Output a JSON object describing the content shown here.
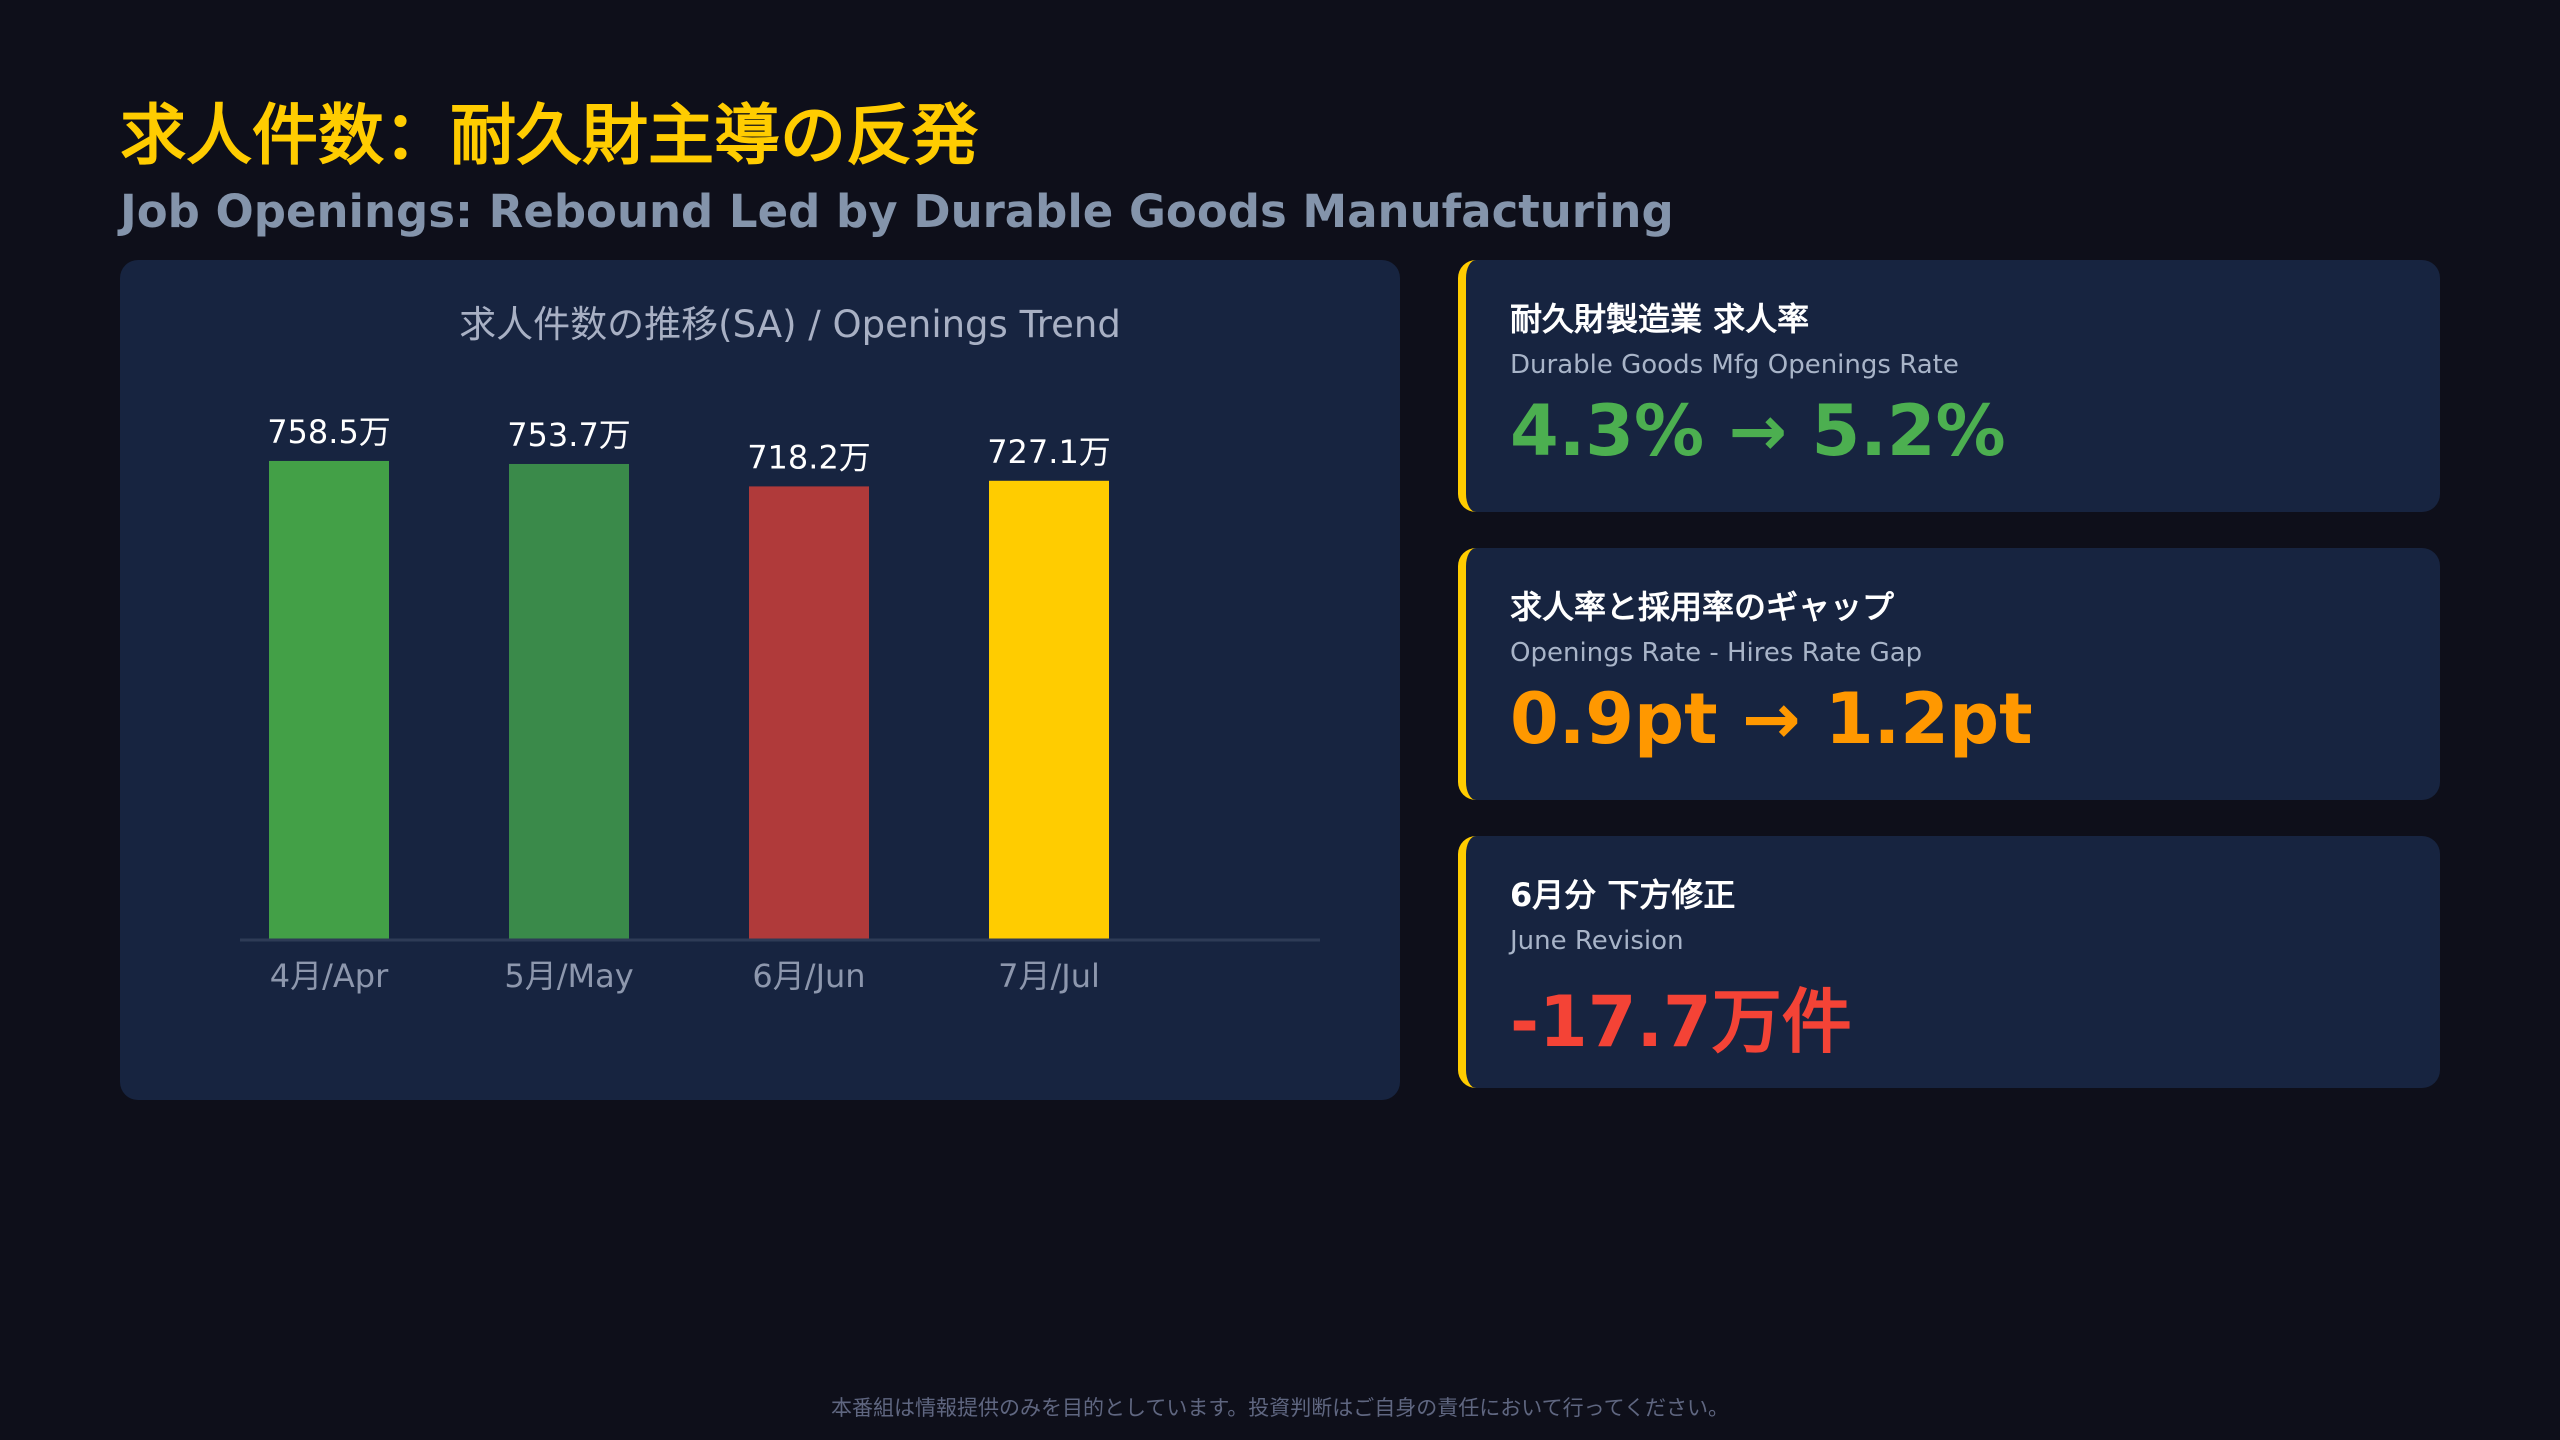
{
  "header": {
    "title": "求人件数：耐久財主導の反発",
    "subtitle": "Job Openings: Rebound Led by Durable Goods Manufacturing"
  },
  "chart_data": {
    "type": "bar",
    "title": "求人件数の推移(SA) / Openings Trend",
    "categories": [
      "4月/Apr",
      "5月/May",
      "6月/Jun",
      "7月/Jul"
    ],
    "values": [
      758.5,
      753.7,
      718.2,
      727.1
    ],
    "value_labels": [
      "758.5万",
      "753.7万",
      "718.2万",
      "727.1万"
    ],
    "colors": [
      "#43a047",
      "#3a8a4a",
      "#b03a3a",
      "#ffcc00"
    ],
    "unit": "万",
    "ylim": [
      0,
      760
    ],
    "grid": false,
    "legend": "none"
  },
  "cards": [
    {
      "title": "耐久財製造業 求人率",
      "subtitle": "Durable Goods Mfg Openings Rate",
      "value": "4.3% → 5.2%",
      "color": "#4caf50"
    },
    {
      "title": "求人率と採用率のギャップ",
      "subtitle": "Openings Rate - Hires Rate Gap",
      "value": "0.9pt → 1.2pt",
      "color": "#ff9800"
    },
    {
      "title": "6月分 下方修正",
      "subtitle": "June Revision",
      "value": "-17.7万件",
      "color": "#f44336"
    }
  ],
  "footer": {
    "disclaimer": "本番組は情報提供のみを目的としています。投資判断はご自身の責任において行ってください。"
  }
}
